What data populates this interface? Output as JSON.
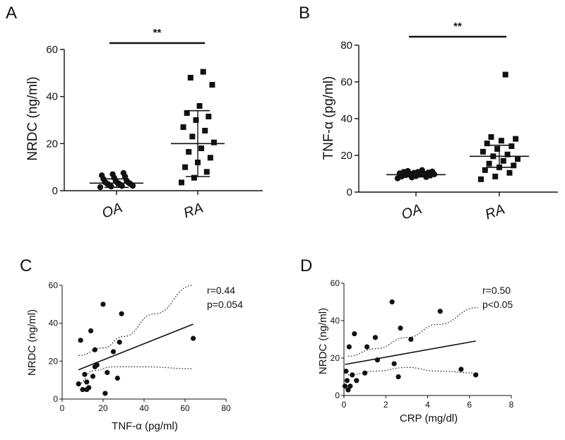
{
  "chart_data": [
    {
      "panel": "A",
      "type": "scatter",
      "ylabel": "NRDC (ng/ml)",
      "xlabel": "",
      "categories": [
        "OA",
        "RA"
      ],
      "ylim": [
        0,
        60
      ],
      "yticks": [
        0,
        20,
        40,
        60
      ],
      "significance": "**",
      "series": [
        {
          "marker": "circle",
          "values": [
            1.5,
            1.8,
            2.0,
            2.1,
            2.3,
            2.5,
            2.6,
            2.8,
            3.0,
            3.1,
            3.2,
            3.4,
            3.5,
            3.7,
            4.0,
            4.3,
            5.0,
            5.5,
            6.0,
            6.5,
            7.0,
            7.5
          ],
          "mean": 3.2,
          "sd": 1.8
        },
        {
          "marker": "square",
          "values": [
            3.5,
            5.5,
            8.0,
            10.0,
            12.0,
            14.0,
            16.5,
            18.0,
            20.5,
            23.0,
            25.5,
            27.0,
            30.0,
            31.5,
            33.0,
            36.0,
            45.0,
            48.0,
            50.5
          ],
          "mean": 20.0,
          "sd": 14.0
        }
      ]
    },
    {
      "panel": "B",
      "type": "scatter",
      "ylabel": "TNF-α (pg/ml)",
      "xlabel": "",
      "categories": [
        "OA",
        "RA"
      ],
      "ylim": [
        0,
        80
      ],
      "yticks": [
        0,
        20,
        40,
        60,
        80
      ],
      "significance": "**",
      "series": [
        {
          "marker": "circle",
          "values": [
            7.5,
            8.0,
            8.2,
            8.5,
            8.7,
            9.0,
            9.2,
            9.5,
            9.7,
            10.0,
            10.0,
            10.2,
            10.5,
            10.7,
            11.0,
            11.0,
            11.2,
            11.5,
            12.0
          ],
          "mean": 9.5,
          "sd": 1.2
        },
        {
          "marker": "square",
          "values": [
            7.0,
            8.5,
            10.5,
            12.0,
            13.5,
            14.5,
            15.5,
            17.0,
            18.0,
            19.5,
            20.5,
            22.0,
            23.5,
            25.0,
            26.5,
            28.0,
            29.0,
            30.0,
            64.0
          ],
          "mean": 19.5,
          "sd": 6.0
        }
      ]
    },
    {
      "panel": "C",
      "type": "scatter",
      "xlabel": "TNF-α (pg/ml)",
      "ylabel": "NRDC (ng/ml)",
      "xlim": [
        0,
        80
      ],
      "ylim": [
        0,
        60
      ],
      "xticks": [
        0,
        20,
        40,
        60,
        80
      ],
      "yticks": [
        0,
        20,
        40,
        60
      ],
      "annotation": [
        "r=0.44",
        "p=0.054"
      ],
      "points": [
        [
          8,
          8
        ],
        [
          9,
          31
        ],
        [
          10,
          5
        ],
        [
          11,
          13
        ],
        [
          12,
          9
        ],
        [
          12,
          5
        ],
        [
          13,
          6
        ],
        [
          14,
          36
        ],
        [
          15,
          12
        ],
        [
          16,
          26
        ],
        [
          16,
          17
        ],
        [
          17,
          18
        ],
        [
          20,
          50
        ],
        [
          21,
          3
        ],
        [
          22,
          14
        ],
        [
          25,
          25
        ],
        [
          28,
          30
        ],
        [
          29,
          45
        ],
        [
          27,
          11
        ],
        [
          64,
          32
        ]
      ],
      "fit": {
        "slope": 0.43,
        "intercept": 12.0
      },
      "ci_upper": [
        [
          8,
          23
        ],
        [
          20,
          27
        ],
        [
          30,
          33
        ],
        [
          45,
          45
        ],
        [
          64,
          60
        ]
      ],
      "ci_lower": [
        [
          8,
          8
        ],
        [
          15,
          15
        ],
        [
          25,
          17
        ],
        [
          40,
          17
        ],
        [
          64,
          16
        ]
      ]
    },
    {
      "panel": "D",
      "type": "scatter",
      "xlabel": "CRP (mg/dl)",
      "ylabel": "NRDC (ng/ml)",
      "xlim": [
        0,
        8
      ],
      "ylim": [
        0,
        60
      ],
      "xticks": [
        0,
        2,
        4,
        6,
        8
      ],
      "yticks": [
        0,
        20,
        40,
        60
      ],
      "annotation": [
        "r=0.50",
        "p<0.05"
      ],
      "points": [
        [
          0.05,
          5
        ],
        [
          0.1,
          13
        ],
        [
          0.15,
          8
        ],
        [
          0.2,
          3
        ],
        [
          0.25,
          26
        ],
        [
          0.3,
          5
        ],
        [
          0.4,
          11
        ],
        [
          0.5,
          33
        ],
        [
          0.6,
          8
        ],
        [
          1.0,
          12
        ],
        [
          1.1,
          26
        ],
        [
          1.5,
          31
        ],
        [
          1.6,
          19
        ],
        [
          2.3,
          50
        ],
        [
          2.4,
          17
        ],
        [
          2.6,
          10
        ],
        [
          2.7,
          36
        ],
        [
          3.2,
          30
        ],
        [
          4.6,
          45
        ],
        [
          5.6,
          14
        ],
        [
          6.3,
          11
        ]
      ],
      "fit": {
        "slope": 2.0,
        "intercept": 16.5
      },
      "ci_upper": [
        [
          0.2,
          21
        ],
        [
          1.5,
          25
        ],
        [
          3,
          31
        ],
        [
          4.5,
          38
        ],
        [
          6.4,
          47
        ]
      ],
      "ci_lower": [
        [
          0.2,
          11
        ],
        [
          1.5,
          13
        ],
        [
          3,
          15
        ],
        [
          4.5,
          13
        ],
        [
          6.4,
          12
        ]
      ]
    }
  ]
}
